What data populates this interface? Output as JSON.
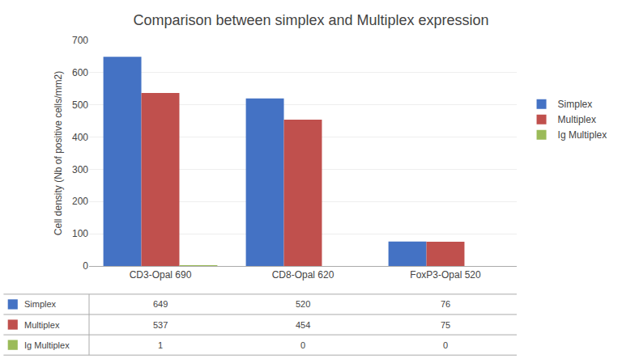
{
  "chart_data": {
    "type": "bar",
    "title": "Comparison between simplex and Multiplex expression",
    "ylabel": "Cell density (Nb of positive cells/mm2)",
    "categories": [
      "CD3-Opal 690",
      "CD8-Opal 620",
      "FoxP3-Opal 520"
    ],
    "series": [
      {
        "name": "Simplex",
        "color": "#4472C4",
        "values": [
          649,
          520,
          76
        ]
      },
      {
        "name": "Multiplex",
        "color": "#C0504D",
        "values": [
          537,
          454,
          75
        ]
      },
      {
        "name": "Ig Multiplex",
        "color": "#9BBB59",
        "values": [
          1,
          0,
          0
        ]
      }
    ],
    "ylim": [
      0,
      700
    ],
    "yticks": [
      0,
      100,
      200,
      300,
      400,
      500,
      600,
      700
    ],
    "grid": true,
    "legend": "right"
  }
}
